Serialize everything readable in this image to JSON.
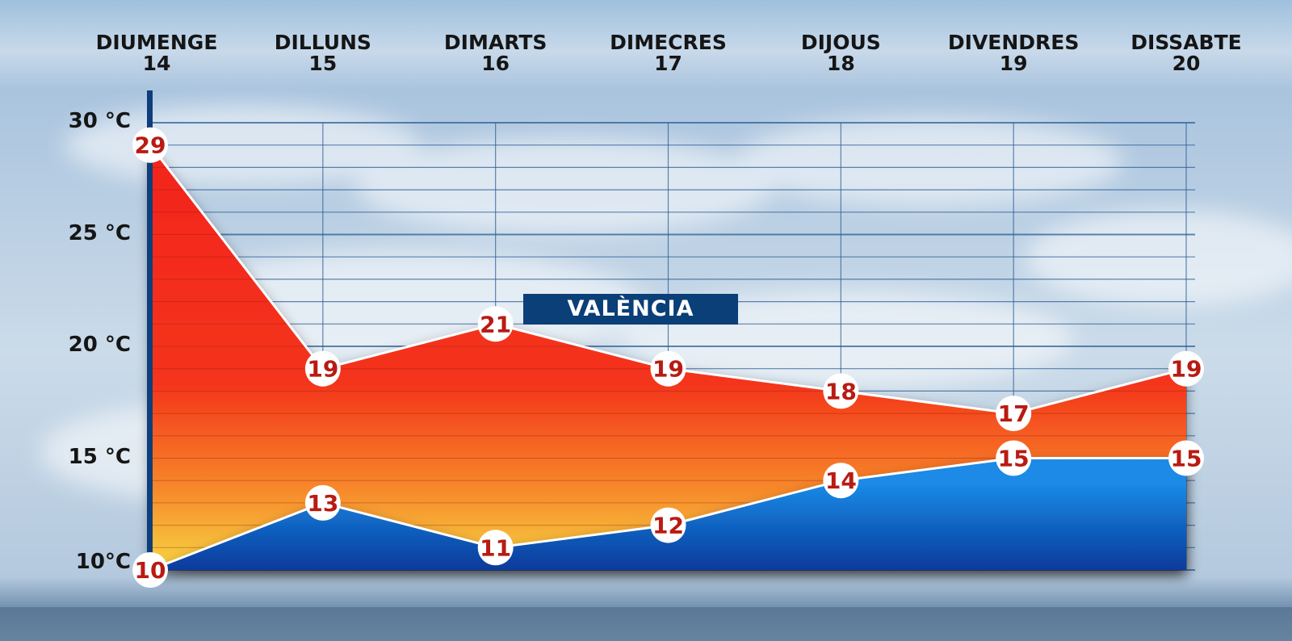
{
  "chart_data": {
    "type": "area",
    "title": "VALÈNCIA",
    "categories": [
      {
        "day": "DIUMENGE",
        "date": "14"
      },
      {
        "day": "DILLUNS",
        "date": "15"
      },
      {
        "day": "DIMARTS",
        "date": "16"
      },
      {
        "day": "DIMECRES",
        "date": "17"
      },
      {
        "day": "DIJOUS",
        "date": "18"
      },
      {
        "day": "DIVENDRES",
        "date": "19"
      },
      {
        "day": "DISSABTE",
        "date": "20"
      }
    ],
    "series": [
      {
        "values": [
          29,
          19,
          21,
          19,
          18,
          17,
          19
        ]
      },
      {
        "values": [
          10,
          13,
          11,
          12,
          14,
          15,
          15
        ]
      }
    ],
    "y_ticks": [
      "30 °C",
      "25 °C",
      "20 °C",
      "15 °C",
      "10°C"
    ],
    "y_tick_values": [
      30,
      25,
      20,
      15,
      10
    ],
    "ylim": [
      10,
      30
    ],
    "grid": true,
    "colors": {
      "max_area_top": "#f3241c",
      "max_area_bottom": "#f7d642",
      "min_area_top": "#1a8ae6",
      "min_area_bottom": "#073a9b",
      "label_text": "#b81b12",
      "axis": "#0e3f7a",
      "grid": "#2e5f95",
      "title_box": "#0a3f78"
    }
  }
}
